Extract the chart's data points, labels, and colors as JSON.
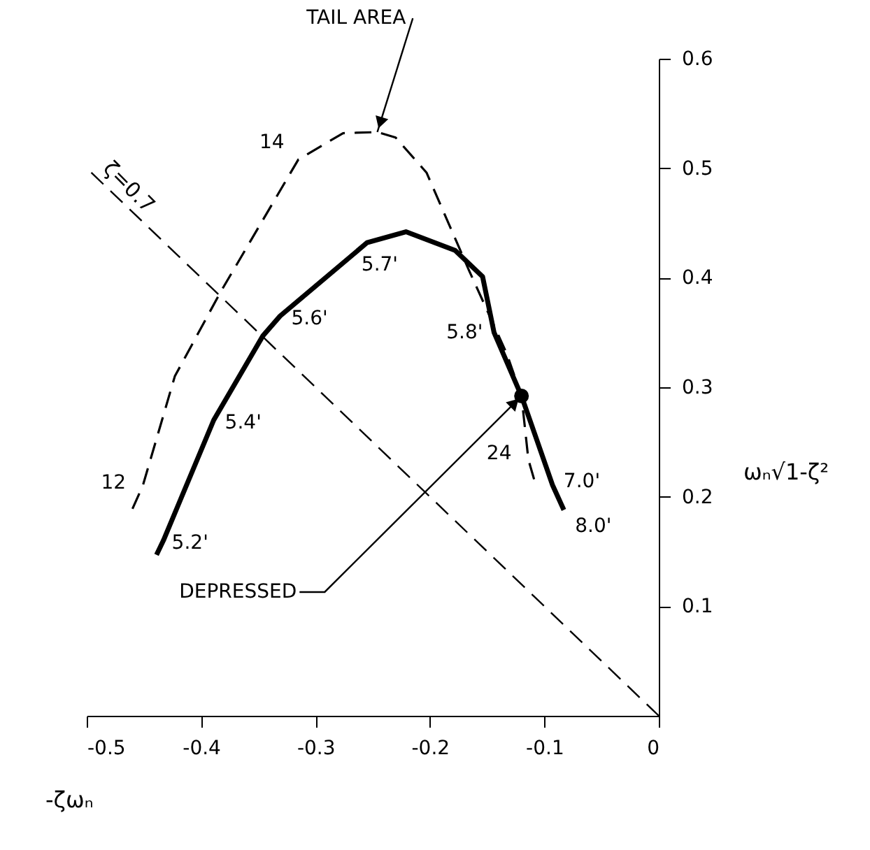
{
  "chart_data": {
    "type": "line",
    "xlabel": "-ζωₙ",
    "ylabel": "ωₙ√1-ζ²",
    "xlim": [
      -0.5,
      0
    ],
    "ylim": [
      0,
      0.6
    ],
    "xticks": [
      -0.5,
      -0.4,
      -0.3,
      -0.2,
      -0.1,
      0
    ],
    "yticks": [
      0.1,
      0.2,
      0.3,
      0.4,
      0.5,
      0.6
    ],
    "series": [
      {
        "line_style": "dashed",
        "color": "#000000",
        "x": [
          -0.46,
          -0.451,
          -0.423,
          -0.383,
          -0.315,
          -0.276,
          -0.246,
          -0.23,
          -0.203,
          -0.166,
          -0.133,
          -0.12,
          -0.114,
          -0.109
        ],
        "values": [
          0.189,
          0.21,
          0.31,
          0.387,
          0.508,
          0.532,
          0.533,
          0.528,
          0.496,
          0.407,
          0.331,
          0.292,
          0.234,
          0.216
        ]
      },
      {
        "line_style": "solid",
        "color": "#000000",
        "x": [
          -0.439,
          -0.433,
          -0.389,
          -0.346,
          -0.331,
          -0.255,
          -0.221,
          -0.178,
          -0.154,
          -0.144,
          -0.12,
          -0.093,
          -0.083
        ],
        "values": [
          0.147,
          0.16,
          0.27,
          0.347,
          0.365,
          0.432,
          0.442,
          0.425,
          0.401,
          0.35,
          0.292,
          0.211,
          0.188
        ]
      },
      {
        "line_style": "dashed",
        "name": "ζ=0.7",
        "color": "#000000",
        "x": [
          -0.496,
          0
        ],
        "values": [
          0.496,
          0
        ]
      },
      {
        "type": "scatter",
        "marker": "circle",
        "color": "#000000",
        "x": [
          -0.12
        ],
        "values": [
          0.292
        ]
      }
    ],
    "annotations": [
      {
        "text": "5.2'",
        "x": -0.433,
        "y": 0.16
      },
      {
        "text": "5.4'",
        "x": -0.389,
        "y": 0.27
      },
      {
        "text": "5.6'",
        "x": -0.331,
        "y": 0.365
      },
      {
        "text": "5.7'",
        "x": -0.255,
        "y": 0.432
      },
      {
        "text": "5.8'",
        "x": -0.144,
        "y": 0.35
      },
      {
        "text": "7.0'",
        "x": -0.093,
        "y": 0.211
      },
      {
        "text": "8.0'",
        "x": -0.083,
        "y": 0.188
      },
      {
        "text": "12",
        "x": -0.451,
        "y": 0.21
      },
      {
        "text": "14",
        "x": -0.315,
        "y": 0.508
      },
      {
        "text": "24",
        "x": -0.114,
        "y": 0.234
      },
      {
        "text": "TAIL AREA",
        "x": -0.246,
        "y": 0.533
      },
      {
        "text": "DEPRESSED",
        "x": -0.12,
        "y": 0.292
      }
    ]
  }
}
